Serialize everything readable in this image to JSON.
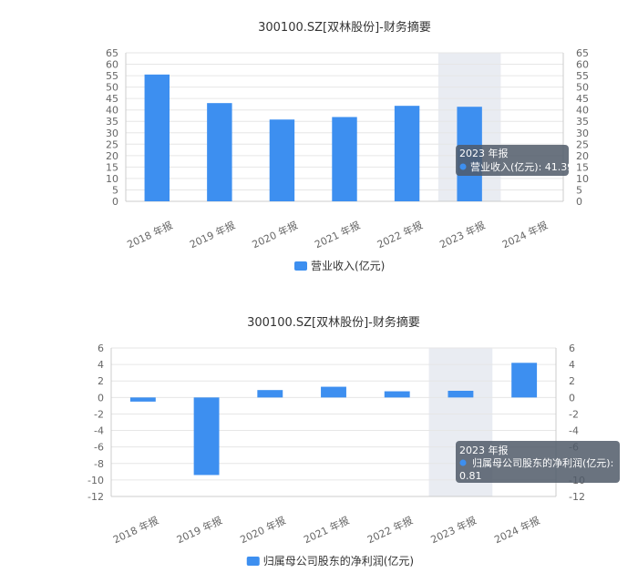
{
  "chart_data": [
    {
      "type": "bar",
      "title": "300100.SZ[双林股份]-财务摘要",
      "categories": [
        "2018 年报",
        "2019 年报",
        "2020 年报",
        "2021 年报",
        "2022 年报",
        "2023 年报",
        "2024 年报"
      ],
      "series": [
        {
          "name": "营业收入(亿元)",
          "values": [
            55.5,
            43.0,
            35.8,
            36.9,
            41.8,
            41.39,
            null
          ]
        }
      ],
      "ylim": [
        0,
        65
      ],
      "yticks": [
        0,
        5,
        10,
        15,
        20,
        25,
        30,
        35,
        40,
        45,
        50,
        55,
        60,
        65
      ],
      "highlight_category": "2023 年报",
      "tooltip": {
        "title": "2023 年报",
        "line": "营业收入(亿元): 41.39"
      },
      "color": "#3d8ff0",
      "legend_position": "bottom"
    },
    {
      "type": "bar",
      "title": "300100.SZ[双林股份]-财务摘要",
      "categories": [
        "2018 年报",
        "2019 年报",
        "2020 年报",
        "2021 年报",
        "2022 年报",
        "2023 年报",
        "2024 年报"
      ],
      "series": [
        {
          "name": "归属母公司股东的净利润(亿元)",
          "values": [
            -0.5,
            -9.4,
            0.9,
            1.3,
            0.75,
            0.81,
            4.2
          ]
        }
      ],
      "ylim": [
        -12,
        6
      ],
      "yticks": [
        -12,
        -10,
        -8,
        -6,
        -4,
        -2,
        0,
        2,
        4,
        6
      ],
      "highlight_category": "2023 年报",
      "tooltip": {
        "title": "2023 年报",
        "line1": "归属母公司股东的净利润(亿元):",
        "line2": "0.81"
      },
      "color": "#3d8ff0",
      "legend_position": "bottom"
    }
  ]
}
